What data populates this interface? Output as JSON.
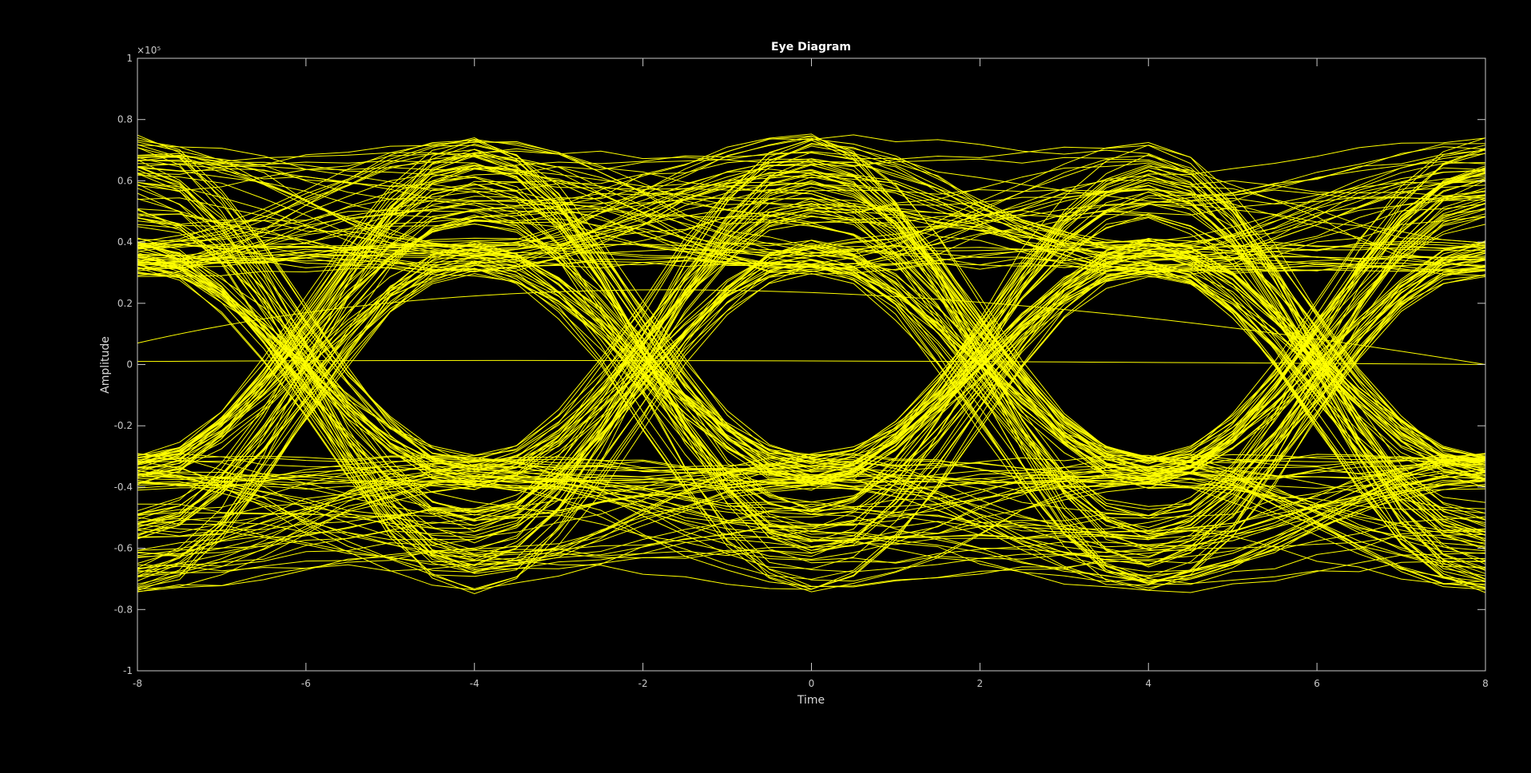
{
  "chart_data": {
    "type": "line",
    "title": "Eye Diagram",
    "xlabel": "Time",
    "ylabel": "Amplitude",
    "exponent_label": "×10⁵",
    "xlim": [
      -8,
      8
    ],
    "ylim": [
      -1,
      1
    ],
    "y_scale_factor": 100000,
    "x_ticks": [
      -8,
      -6,
      -4,
      -2,
      0,
      2,
      4,
      6,
      8
    ],
    "x_tick_labels": [
      "-8",
      "-6",
      "-4",
      "-2",
      "0",
      "2",
      "4",
      "6",
      "8"
    ],
    "y_ticks": [
      -1,
      -0.8,
      -0.6,
      -0.4,
      -0.2,
      0,
      0.2,
      0.4,
      0.6,
      0.8,
      1
    ],
    "y_tick_labels": [
      "-1",
      "-0.8",
      "-0.6",
      "-0.4",
      "-0.2",
      "0",
      "0.2",
      "0.4",
      "0.6",
      "0.8",
      "1"
    ],
    "symbol_levels": [
      -0.6,
      -0.35,
      0.35,
      0.6
    ],
    "crossing_levels": [
      -0.48,
      0,
      0.48
    ],
    "symbol_period": 8,
    "grid": false,
    "trace_count": 220,
    "colors": {
      "background": "#000000",
      "axes_background": "#000000",
      "trace": "#ffff00",
      "axis": "#c8c8c8",
      "text": "#ffffff"
    }
  }
}
